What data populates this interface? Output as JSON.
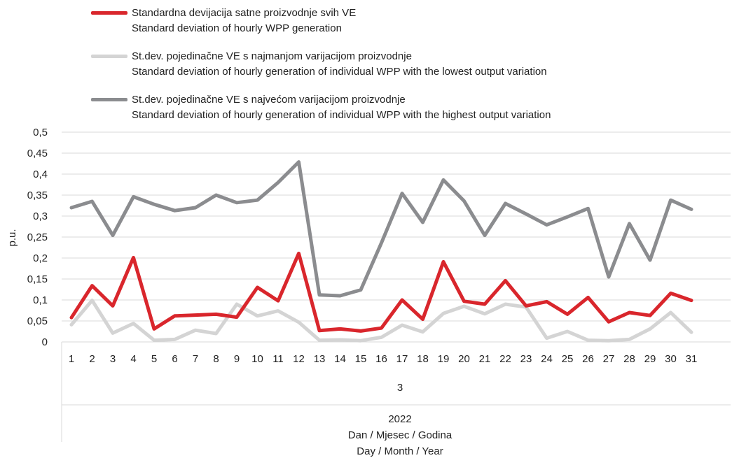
{
  "chart_data": {
    "type": "line",
    "ylabel": "p.u.",
    "ylim": [
      0,
      0.5
    ],
    "yticks": [
      "0",
      "0,05",
      "0,1",
      "0,15",
      "0,2",
      "0,25",
      "0,3",
      "0,35",
      "0,4",
      "0,45",
      "0,5"
    ],
    "categories": [
      "1",
      "2",
      "3",
      "4",
      "5",
      "6",
      "7",
      "8",
      "9",
      "10",
      "11",
      "12",
      "13",
      "14",
      "15",
      "16",
      "17",
      "18",
      "19",
      "20",
      "21",
      "22",
      "23",
      "24",
      "25",
      "26",
      "27",
      "28",
      "29",
      "30",
      "31"
    ],
    "month_label": "3",
    "year_label": "2022",
    "xlabel_line1": "Dan / Mjesec / Godina",
    "xlabel_line2": "Day / Month / Year",
    "grid": true,
    "legend_position": "top",
    "series": [
      {
        "name_line1": "Standardna devijacija satne proizvodnje svih VE",
        "name_line2": "Standard deviation of hourly WPP generation",
        "color": "#d9262c",
        "values": [
          0.058,
          0.134,
          0.086,
          0.201,
          0.031,
          0.062,
          0.064,
          0.066,
          0.059,
          0.13,
          0.098,
          0.211,
          0.027,
          0.031,
          0.026,
          0.033,
          0.1,
          0.054,
          0.191,
          0.097,
          0.09,
          0.146,
          0.086,
          0.096,
          0.066,
          0.106,
          0.048,
          0.07,
          0.063,
          0.116,
          0.099
        ]
      },
      {
        "name_line1": "St.dev. pojedinačne VE s najmanjom varijacijom proizvodnje",
        "name_line2": "Standard deviation of hourly generation of individual WPP with the lowest output variation",
        "color": "#d4d4d4",
        "values": [
          0.041,
          0.099,
          0.021,
          0.044,
          0.004,
          0.006,
          0.028,
          0.02,
          0.09,
          0.062,
          0.074,
          0.047,
          0.004,
          0.005,
          0.003,
          0.011,
          0.04,
          0.024,
          0.068,
          0.085,
          0.067,
          0.09,
          0.083,
          0.009,
          0.025,
          0.004,
          0.003,
          0.006,
          0.031,
          0.07,
          0.023
        ]
      },
      {
        "name_line1": "St.dev. pojedinačne VE s najvećom varijacijom proizvodnje",
        "name_line2": "Standard deviation of hourly generation of individual WPP with the highest output variation",
        "color": "#8b8c8f",
        "values": [
          0.32,
          0.335,
          0.254,
          0.346,
          0.328,
          0.313,
          0.32,
          0.35,
          0.332,
          0.338,
          0.38,
          0.429,
          0.112,
          0.11,
          0.124,
          0.236,
          0.354,
          0.285,
          0.386,
          0.336,
          0.254,
          0.33,
          0.305,
          0.279,
          0.298,
          0.318,
          0.155,
          0.282,
          0.195,
          0.338,
          0.316
        ]
      }
    ]
  }
}
